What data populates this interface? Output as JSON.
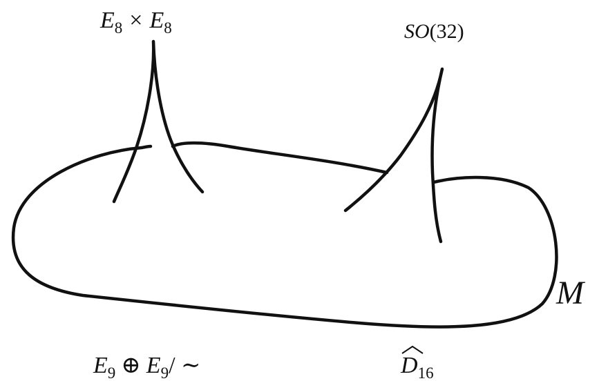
{
  "labels": {
    "top_left": [
      "E",
      "8",
      "×",
      "E",
      "8"
    ],
    "top_right": [
      "SO",
      "(32)"
    ],
    "bottom_left": [
      "E",
      "9",
      "⊕",
      "E",
      "9",
      "/ ∼"
    ],
    "bottom_right": [
      "D",
      "16"
    ],
    "manifold": "M"
  }
}
